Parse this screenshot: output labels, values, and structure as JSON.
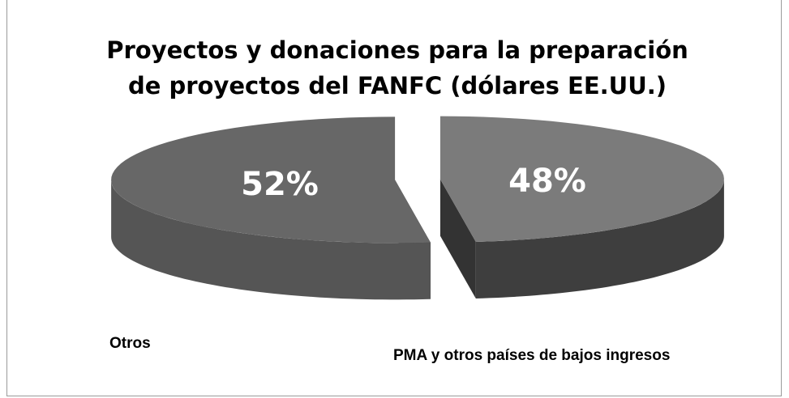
{
  "chart_data": {
    "type": "pie",
    "title": "Proyectos y donaciones para la preparación de proyectos del FANFC (dólares EE.UU.)",
    "categories": [
      "PMA y otros países de bajos ingresos",
      "Otros"
    ],
    "values": [
      48,
      52
    ],
    "value_labels": [
      "48%",
      "52%"
    ],
    "colors": [
      "#7b7b7b",
      "#676767"
    ]
  }
}
